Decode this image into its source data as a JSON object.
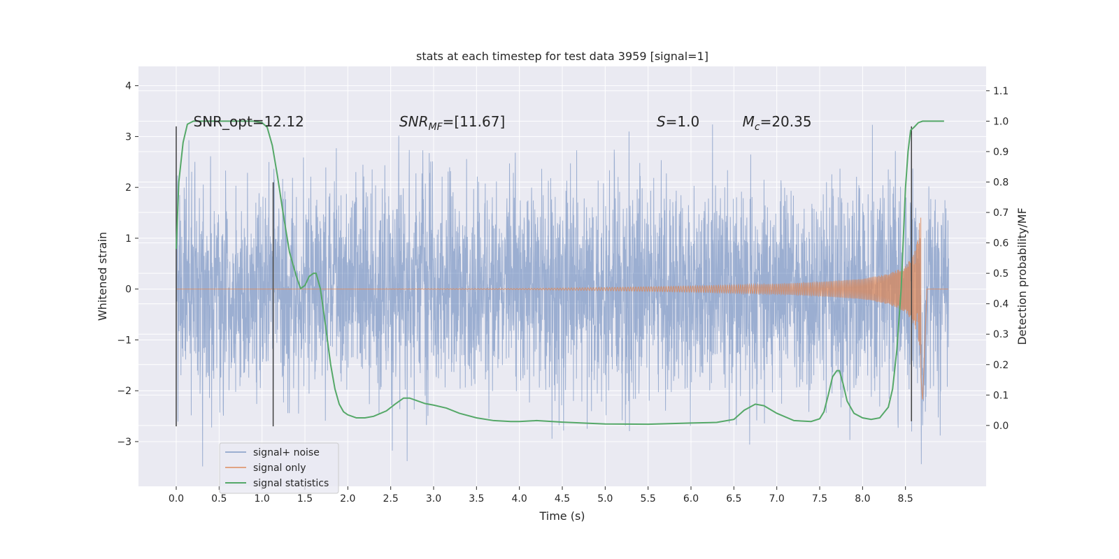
{
  "chart_data": {
    "type": "line",
    "title": "stats at each timestep for test data 3959 [signal=1]",
    "xlabel": "Time (s)",
    "ylabel": "Whitened strain",
    "y2label": "Detection probability/MF",
    "xlim": [
      -0.44,
      9.44
    ],
    "ylim": [
      -3.88,
      4.38
    ],
    "y2lim": [
      -0.2,
      1.18
    ],
    "xticks": [
      0.0,
      0.5,
      1.0,
      1.5,
      2.0,
      2.5,
      3.0,
      3.5,
      4.0,
      4.5,
      5.0,
      5.5,
      6.0,
      6.5,
      7.0,
      7.5,
      8.0,
      8.5
    ],
    "xtick_labels": [
      "0.0",
      "0.5",
      "1.0",
      "1.5",
      "2.0",
      "2.5",
      "3.0",
      "3.5",
      "4.0",
      "4.5",
      "5.0",
      "5.5",
      "6.0",
      "6.5",
      "7.0",
      "7.5",
      "8.0",
      "8.5"
    ],
    "yticks": [
      -3,
      -2,
      -1,
      0,
      1,
      2,
      3,
      4
    ],
    "ytick_labels": [
      "−3",
      "−2",
      "−1",
      "0",
      "1",
      "2",
      "3",
      "4"
    ],
    "y2ticks": [
      0.0,
      0.1,
      0.2,
      0.3,
      0.4,
      0.5,
      0.6,
      0.7,
      0.8,
      0.9,
      1.0,
      1.1
    ],
    "y2tick_labels": [
      "0.0",
      "0.1",
      "0.2",
      "0.3",
      "0.4",
      "0.5",
      "0.6",
      "0.7",
      "0.8",
      "0.9",
      "1.0",
      "1.1"
    ],
    "grid": true,
    "legend_position": "lower-left",
    "annotations": [
      {
        "label": "SNR_opt=12.12",
        "x": 0.2,
        "y": 3.2
      },
      {
        "label": "SNR_MF=[11.67]",
        "x": 2.6,
        "y": 3.2
      },
      {
        "label": "S=1.0",
        "x": 5.6,
        "y": 3.2
      },
      {
        "label": "M_c=20.35",
        "x": 6.6,
        "y": 3.2
      }
    ],
    "vertical_markers": [
      {
        "x": 0.0,
        "y_range": [
          -2.7,
          3.2
        ]
      },
      {
        "x": 1.13,
        "y_range": [
          -2.7,
          2.1
        ]
      },
      {
        "x": 8.57,
        "y_range": [
          -2.6,
          3.2
        ]
      }
    ],
    "series": [
      {
        "name": "signal+ noise",
        "color": "#4c72b0",
        "axis": "left",
        "x_range": [
          0.0,
          9.0
        ],
        "sample_count": 1800,
        "std": 1.0,
        "signal_added": true
      },
      {
        "name": "signal only",
        "color": "#dd8452",
        "axis": "left",
        "description_points": {
          "x": [
            0.0,
            2.0,
            4.0,
            5.0,
            6.0,
            7.0,
            7.5,
            8.0,
            8.3,
            8.5,
            8.6,
            8.65,
            8.7,
            8.75,
            9.0
          ],
          "amplitude": [
            0.0,
            0.0,
            0.01,
            0.03,
            0.06,
            0.1,
            0.14,
            0.2,
            0.3,
            0.45,
            0.7,
            1.0,
            2.2,
            0.0,
            0.0
          ]
        }
      },
      {
        "name": "signal statistics",
        "color": "#55a868",
        "axis": "right",
        "x": [
          0.0,
          0.03,
          0.08,
          0.13,
          0.2,
          0.3,
          0.5,
          0.7,
          0.9,
          1.0,
          1.06,
          1.12,
          1.18,
          1.25,
          1.32,
          1.4,
          1.45,
          1.5,
          1.55,
          1.6,
          1.63,
          1.68,
          1.73,
          1.8,
          1.85,
          1.9,
          1.95,
          2.0,
          2.1,
          2.2,
          2.3,
          2.45,
          2.55,
          2.65,
          2.72,
          2.8,
          2.9,
          3.0,
          3.15,
          3.3,
          3.5,
          3.7,
          3.9,
          4.0,
          4.2,
          4.5,
          5.0,
          5.5,
          6.0,
          6.3,
          6.5,
          6.62,
          6.75,
          6.85,
          7.0,
          7.2,
          7.4,
          7.5,
          7.55,
          7.6,
          7.65,
          7.7,
          7.73,
          7.77,
          7.82,
          7.9,
          8.0,
          8.1,
          8.2,
          8.3,
          8.35,
          8.4,
          8.45,
          8.5,
          8.53,
          8.56,
          8.6,
          8.65,
          8.7,
          8.8,
          8.95
        ],
        "values": [
          0.58,
          0.8,
          0.93,
          0.99,
          1.0,
          1.0,
          1.0,
          1.0,
          1.0,
          0.995,
          0.98,
          0.92,
          0.82,
          0.69,
          0.57,
          0.49,
          0.45,
          0.46,
          0.49,
          0.5,
          0.5,
          0.45,
          0.35,
          0.2,
          0.12,
          0.07,
          0.045,
          0.035,
          0.025,
          0.025,
          0.03,
          0.048,
          0.07,
          0.09,
          0.09,
          0.082,
          0.072,
          0.067,
          0.057,
          0.04,
          0.025,
          0.016,
          0.013,
          0.013,
          0.016,
          0.011,
          0.005,
          0.004,
          0.008,
          0.01,
          0.02,
          0.05,
          0.07,
          0.065,
          0.04,
          0.016,
          0.013,
          0.022,
          0.045,
          0.1,
          0.16,
          0.18,
          0.18,
          0.14,
          0.08,
          0.04,
          0.025,
          0.02,
          0.025,
          0.06,
          0.12,
          0.25,
          0.45,
          0.78,
          0.9,
          0.97,
          0.98,
          0.995,
          1.0,
          1.0,
          1.0
        ]
      }
    ]
  }
}
